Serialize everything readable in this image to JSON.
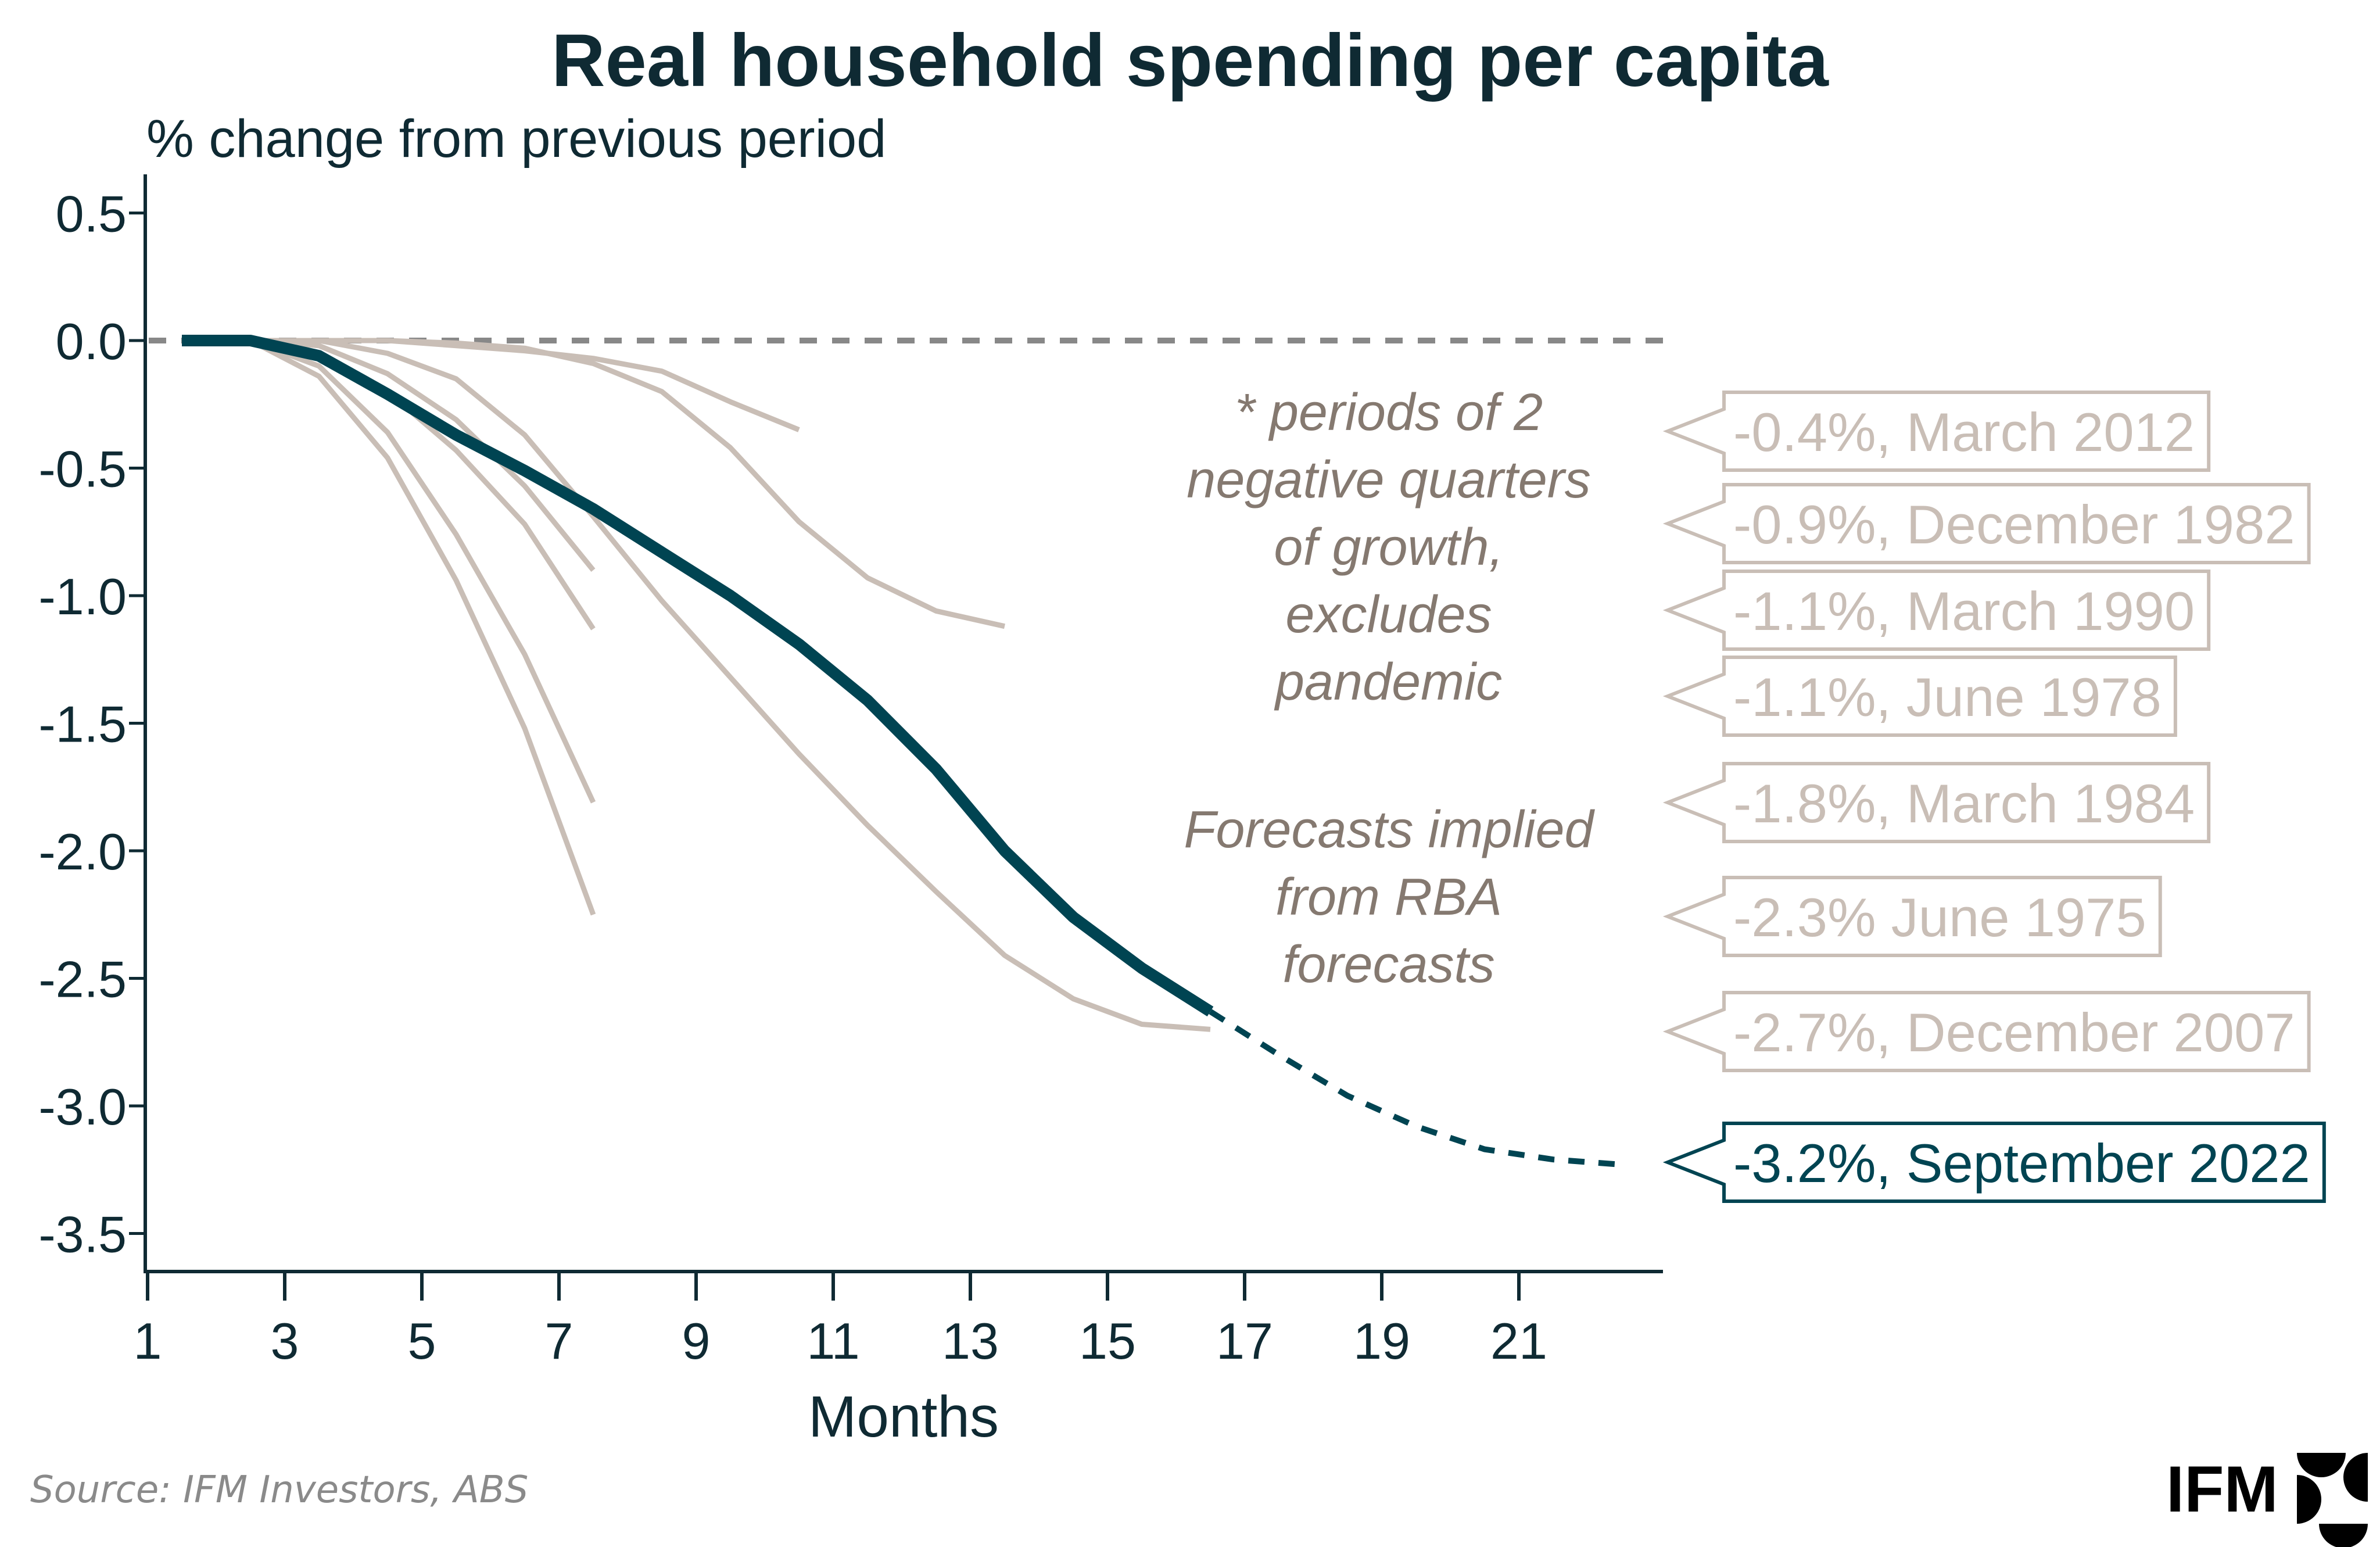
{
  "colors": {
    "highlight": "#004452",
    "history": "#c9beb6",
    "axis": "#0f2a33",
    "zero_line": "#888888",
    "note_text": "#857970"
  },
  "footer": {
    "source": "Source: IFM Investors, ABS",
    "logo_text": "IFM"
  },
  "chart_data": {
    "type": "line",
    "title": "Real household spending per capita",
    "subtitle": "% change from previous period",
    "xlabel": "Months",
    "ylabel": "% change from previous period",
    "xlim": [
      1,
      23
    ],
    "ylim": [
      -3.65,
      0.6
    ],
    "x_ticks": [
      1,
      3,
      5,
      7,
      9,
      11,
      13,
      15,
      17,
      19,
      21
    ],
    "y_ticks": [
      0.5,
      0.0,
      -0.5,
      -1.0,
      -1.5,
      -2.0,
      -2.5,
      -3.0,
      -3.5
    ],
    "y_tick_labels": [
      "0.5",
      "0.0",
      "-0.5",
      "-1.0",
      "-1.5",
      "-2.0",
      "-2.5",
      "-3.0",
      "-3.5"
    ],
    "grid": false,
    "reference_line": {
      "y": 0,
      "style": "dashed"
    },
    "annotations": [
      {
        "lines": [
          "* periods of 2",
          "negative quarters",
          "of growth,",
          "excludes",
          "pandemic"
        ]
      },
      {
        "lines": [
          "Forecasts implied",
          "from RBA",
          "forecasts"
        ]
      }
    ],
    "series": [
      {
        "name": "March 2012",
        "label": "-0.4%, March 2012",
        "highlight": false,
        "x": [
          2.5,
          3.5,
          4.5,
          5.5,
          6.5,
          7.5,
          8.5,
          9.5,
          10.5
        ],
        "values": [
          0,
          0,
          0,
          -0.02,
          -0.04,
          -0.07,
          -0.12,
          -0.24,
          -0.35
        ]
      },
      {
        "name": "December 1982",
        "label": "-0.9%, December 1982",
        "highlight": false,
        "x": [
          2.5,
          3.5,
          4.5,
          5.5,
          6.5,
          7.5,
          8.5,
          9.5,
          10.5,
          11.5,
          12.5,
          13.5
        ],
        "values": [
          0,
          0,
          0,
          -0.01,
          -0.03,
          -0.09,
          -0.2,
          -0.42,
          -0.71,
          -0.93,
          -1.06,
          -1.12
        ]
      },
      {
        "name": "March 1990",
        "label": "-1.1%, March 1990",
        "highlight": false,
        "x": [
          2.5,
          3.5,
          4.5,
          5.5,
          6.5,
          7.5
        ],
        "values": [
          0,
          -0.02,
          -0.13,
          -0.31,
          -0.57,
          -0.9
        ]
      },
      {
        "name": "June 1978",
        "label": "-1.1%, June 1978",
        "highlight": false,
        "x": [
          2.5,
          3.5,
          4.5,
          5.5,
          6.5,
          7.5
        ],
        "values": [
          0,
          -0.05,
          -0.2,
          -0.43,
          -0.72,
          -1.13
        ]
      },
      {
        "name": "March 1984",
        "label": "-1.8%, March 1984",
        "highlight": false,
        "x": [
          2.5,
          3.5,
          4.5,
          5.5,
          6.5,
          7.5
        ],
        "values": [
          0,
          -0.1,
          -0.36,
          -0.76,
          -1.23,
          -1.81
        ]
      },
      {
        "name": "June 1975",
        "label": "-2.3% June 1975",
        "highlight": false,
        "x": [
          2.5,
          3.5,
          4.5,
          5.5,
          6.5,
          7.5
        ],
        "values": [
          0,
          -0.14,
          -0.46,
          -0.94,
          -1.52,
          -2.25
        ]
      },
      {
        "name": "December 2007",
        "label": "-2.7%, December 2007",
        "highlight": false,
        "x": [
          3.5,
          4.5,
          5.5,
          6.5,
          7.5,
          8.5,
          9.5,
          10.5,
          11.5,
          12.5,
          13.5,
          14.5,
          15.5,
          16.5
        ],
        "values": [
          0,
          -0.05,
          -0.15,
          -0.37,
          -0.69,
          -1.02,
          -1.32,
          -1.62,
          -1.9,
          -2.16,
          -2.41,
          -2.58,
          -2.68,
          -2.7
        ]
      },
      {
        "name": "September 2022",
        "label": "-3.2%, September 2022",
        "highlight": true,
        "x": [
          1.5,
          2.5,
          3.5,
          4.5,
          5.5,
          6.5,
          7.5,
          8.5,
          9.5,
          10.5,
          11.5,
          12.5,
          13.5,
          14.5,
          15.5,
          16.5
        ],
        "values": [
          0,
          0,
          -0.06,
          -0.21,
          -0.37,
          -0.51,
          -0.66,
          -0.83,
          -1.0,
          -1.19,
          -1.41,
          -1.68,
          -2.0,
          -2.26,
          -2.46,
          -2.63
        ],
        "forecast": {
          "x": [
            16.5,
            17.5,
            18.5,
            19.5,
            20.5,
            21.5,
            22.5
          ],
          "values": [
            -2.63,
            -2.8,
            -2.96,
            -3.08,
            -3.17,
            -3.21,
            -3.23
          ],
          "style": "dashed"
        }
      }
    ]
  }
}
